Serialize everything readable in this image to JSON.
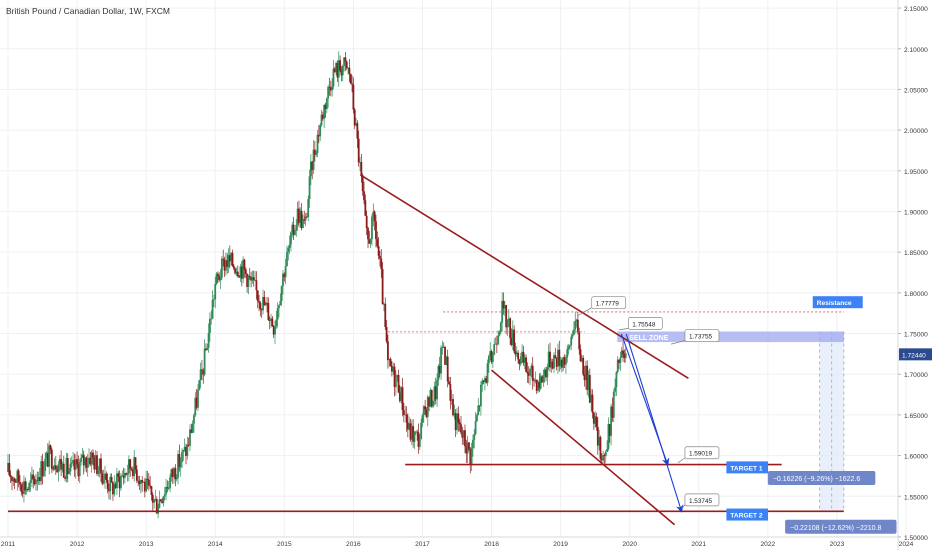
{
  "chart_title": "British Pound / Canadian Dollar, 1W, FXCM",
  "colors": {
    "up": "#2e8b57",
    "down": "#8b1a1a",
    "trendline": "#9b1c1c",
    "arrow": "#1f3fd1",
    "sell_zone": "#9ea8f0",
    "label_blue": "#3b82f6",
    "measure_bg": "#6f86c9",
    "price_tag": "#2c4a8f",
    "grid": "#eef0f4",
    "axis_text": "#3a3a3a"
  },
  "chart_data": {
    "type": "candlestick",
    "title": "British Pound / Canadian Dollar, 1W, FXCM",
    "xlim": [
      2011.0,
      2024.0
    ],
    "ylim": [
      1.495,
      2.155
    ],
    "x_ticks": [
      "2011",
      "2012",
      "2013",
      "2014",
      "2015",
      "2016",
      "2017",
      "2018",
      "2019",
      "2020",
      "2021",
      "2022",
      "2023",
      "2024"
    ],
    "y_ticks": [
      "2.15000",
      "2.10000",
      "2.05000",
      "2.00000",
      "1.95000",
      "1.90000",
      "1.85000",
      "1.80000",
      "1.75000",
      "1.70000",
      "1.65000",
      "1.60000",
      "1.55000",
      "1.50000"
    ],
    "last_price": "1.72440",
    "price_path": [
      [
        2011.0,
        1.58
      ],
      [
        2011.3,
        1.56
      ],
      [
        2011.6,
        1.6
      ],
      [
        2011.9,
        1.58
      ],
      [
        2012.2,
        1.6
      ],
      [
        2012.5,
        1.56
      ],
      [
        2012.8,
        1.59
      ],
      [
        2013.0,
        1.56
      ],
      [
        2013.15,
        1.54
      ],
      [
        2013.4,
        1.58
      ],
      [
        2013.6,
        1.61
      ],
      [
        2013.85,
        1.72
      ],
      [
        2014.0,
        1.81
      ],
      [
        2014.15,
        1.84
      ],
      [
        2014.4,
        1.83
      ],
      [
        2014.6,
        1.8
      ],
      [
        2014.75,
        1.78
      ],
      [
        2014.85,
        1.76
      ],
      [
        2015.0,
        1.83
      ],
      [
        2015.2,
        1.9
      ],
      [
        2015.3,
        1.88
      ],
      [
        2015.4,
        1.96
      ],
      [
        2015.55,
        2.02
      ],
      [
        2015.7,
        2.07
      ],
      [
        2015.85,
        2.08
      ],
      [
        2015.95,
        2.07
      ],
      [
        2016.0,
        2.03
      ],
      [
        2016.1,
        1.95
      ],
      [
        2016.2,
        1.86
      ],
      [
        2016.3,
        1.89
      ],
      [
        2016.4,
        1.82
      ],
      [
        2016.5,
        1.71
      ],
      [
        2016.65,
        1.69
      ],
      [
        2016.8,
        1.63
      ],
      [
        2016.95,
        1.62
      ],
      [
        2017.05,
        1.66
      ],
      [
        2017.2,
        1.68
      ],
      [
        2017.3,
        1.74
      ],
      [
        2017.45,
        1.65
      ],
      [
        2017.6,
        1.62
      ],
      [
        2017.7,
        1.6
      ],
      [
        2017.85,
        1.68
      ],
      [
        2018.0,
        1.72
      ],
      [
        2018.15,
        1.78
      ],
      [
        2018.25,
        1.76
      ],
      [
        2018.4,
        1.72
      ],
      [
        2018.55,
        1.7
      ],
      [
        2018.7,
        1.69
      ],
      [
        2018.85,
        1.72
      ],
      [
        2019.0,
        1.72
      ],
      [
        2019.1,
        1.72
      ],
      [
        2019.2,
        1.77
      ],
      [
        2019.3,
        1.72
      ],
      [
        2019.45,
        1.67
      ],
      [
        2019.55,
        1.61
      ],
      [
        2019.65,
        1.6
      ],
      [
        2019.75,
        1.66
      ],
      [
        2019.85,
        1.72
      ],
      [
        2019.95,
        1.72
      ]
    ],
    "trendlines": [
      {
        "name": "upper_channel",
        "from": [
          2016.1,
          1.945
        ],
        "to": [
          2020.85,
          1.695
        ]
      },
      {
        "name": "lower_channel",
        "from": [
          2018.0,
          1.705
        ],
        "to": [
          2020.65,
          1.515
        ]
      },
      {
        "name": "target1_support",
        "from": [
          2016.75,
          1.589
        ],
        "to": [
          2022.2,
          1.589
        ]
      },
      {
        "name": "target2_support",
        "from": [
          2011.0,
          1.5315
        ],
        "to": [
          2023.1,
          1.5315
        ]
      }
    ],
    "dotted_levels": [
      {
        "y": 1.7765,
        "from": 2017.3,
        "to": 2023.1
      },
      {
        "y": 1.752,
        "from": 2016.5,
        "to": 2019.35
      }
    ],
    "sell_zone": {
      "label": "SELL ZONE",
      "x0": 2019.82,
      "x1": 2023.1,
      "y0": 1.7395,
      "y1": 1.7525
    },
    "arrows": [
      {
        "from": [
          2019.88,
          1.7495
        ],
        "to": [
          2020.55,
          1.589
        ]
      },
      {
        "from": [
          2019.95,
          1.7495
        ],
        "to": [
          2020.75,
          1.5315
        ]
      }
    ],
    "price_callouts": [
      {
        "text": "1.77779",
        "x": 2019.45,
        "y": 1.7879,
        "anchor": [
          2019.25,
          1.772
        ]
      },
      {
        "text": "1.75548",
        "x": 2019.98,
        "y": 1.7625,
        "anchor": [
          2019.85,
          1.7545
        ]
      },
      {
        "text": "1.73755",
        "x": 2020.8,
        "y": 1.7475,
        "anchor": [
          2020.6,
          1.737
        ]
      },
      {
        "text": "1.59019",
        "x": 2020.8,
        "y": 1.6035,
        "anchor": [
          2020.7,
          1.591
        ]
      },
      {
        "text": "1.53745",
        "x": 2020.8,
        "y": 1.5455,
        "anchor": [
          2020.75,
          1.535
        ]
      }
    ],
    "tags": [
      {
        "text": "Resistance",
        "x": 2022.65,
        "y": 1.7885
      },
      {
        "text": "TARGET 1",
        "x": 2021.4,
        "y": 1.5855
      },
      {
        "text": "TARGET 2",
        "x": 2021.4,
        "y": 1.5275
      }
    ],
    "measurements": [
      {
        "text": "−0.16226 (−9.26%) −1622.6",
        "x": 2022.0,
        "y": 1.5725
      },
      {
        "text": "−0.22108 (−12.62%) −2210.8",
        "x": 2022.25,
        "y": 1.5125
      }
    ],
    "measure_band": {
      "x0": 2022.75,
      "x1": 2023.1,
      "y0": 1.5315,
      "y1": 1.7525
    }
  }
}
